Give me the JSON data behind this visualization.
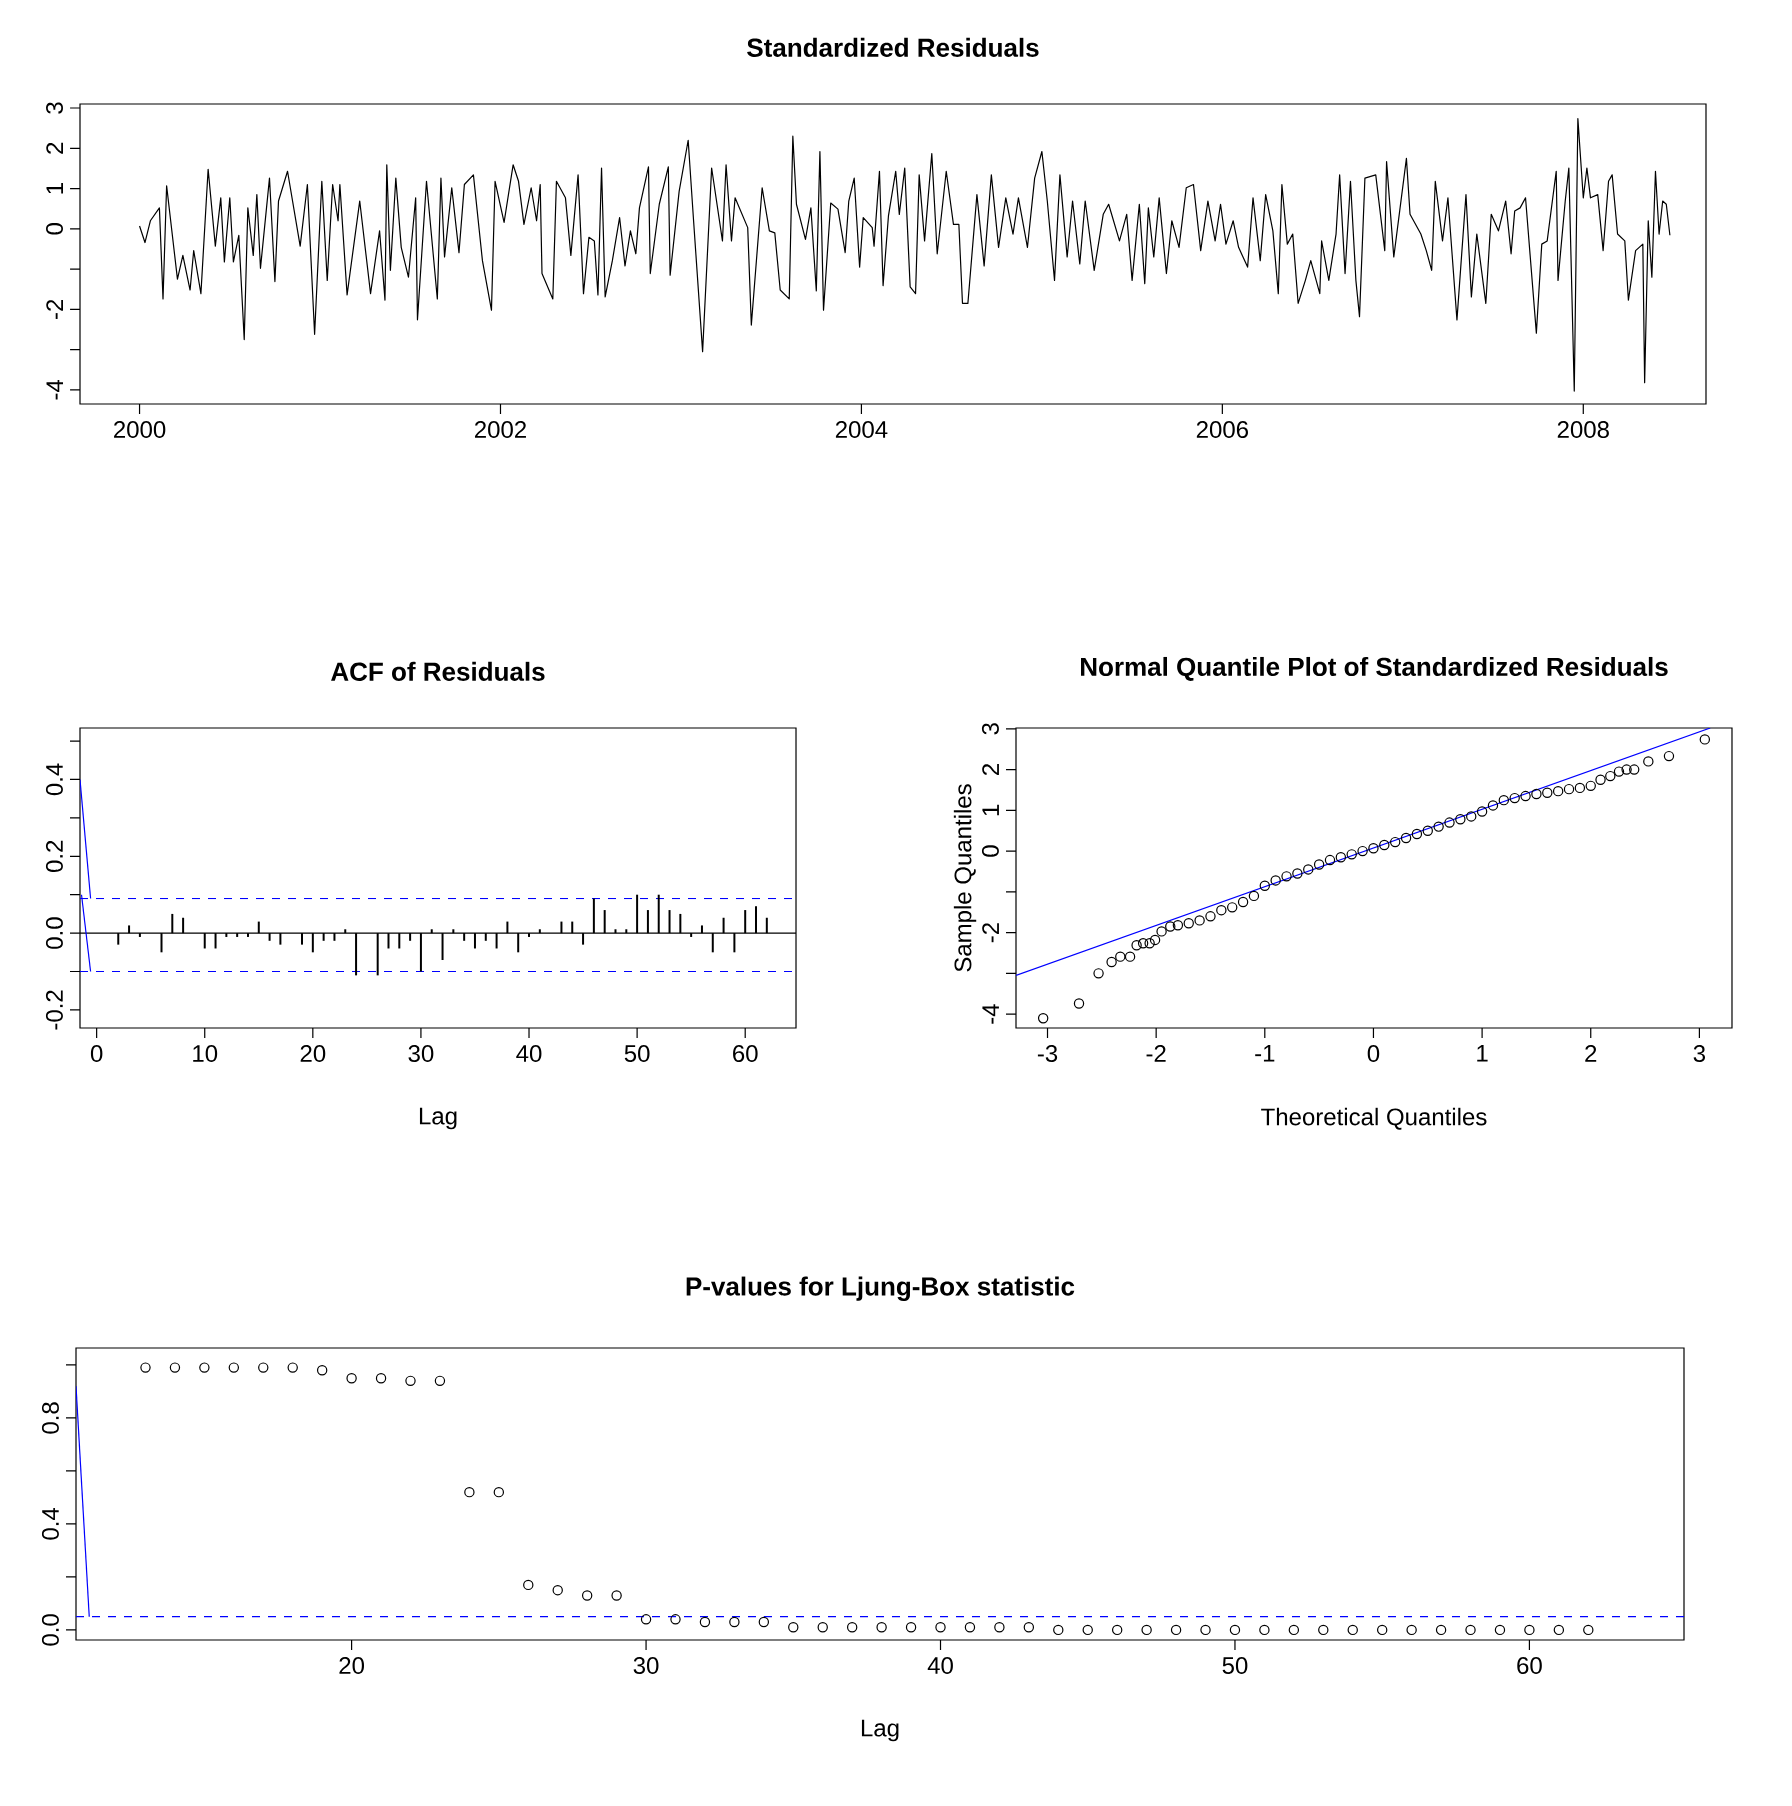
{
  "chart_data": [
    {
      "type": "line",
      "title": "Standardized Residuals",
      "xlim": [
        1999.67,
        2008.68
      ],
      "ylim": [
        -4.35,
        3.1
      ],
      "xticks": [
        2000,
        2002,
        2004,
        2006,
        2008
      ],
      "yticks": [
        -4,
        {
          "value": -3,
          "label": null
        },
        -2,
        {
          "value": -1,
          "label": null
        },
        0,
        1,
        2,
        3
      ],
      "x": [
        2000.0,
        2000.03,
        2000.06,
        2000.11,
        2000.13,
        2000.15,
        2000.21,
        2000.24,
        2000.28,
        2000.3,
        2000.34,
        2000.38,
        2000.42,
        2000.45,
        2000.47,
        2000.5,
        2000.52,
        2000.55,
        2000.58,
        2000.6,
        2000.63,
        2000.65,
        2000.67,
        2000.72,
        2000.75,
        2000.77,
        2000.82,
        2000.89,
        2000.93,
        2000.97,
        2001.01,
        2001.04,
        2001.07,
        2001.1,
        2001.11,
        2001.15,
        2001.22,
        2001.28,
        2001.33,
        2001.36,
        2001.37,
        2001.39,
        2001.42,
        2001.45,
        2001.49,
        2001.53,
        2001.54,
        2001.59,
        2001.65,
        2001.67,
        2001.69,
        2001.73,
        2001.77,
        2001.8,
        2001.85,
        2001.9,
        2001.95,
        2001.97,
        2002.02,
        2002.07,
        2002.1,
        2002.13,
        2002.17,
        2002.2,
        2002.22,
        2002.23,
        2002.29,
        2002.31,
        2002.36,
        2002.39,
        2002.43,
        2002.46,
        2002.49,
        2002.52,
        2002.54,
        2002.56,
        2002.58,
        2002.62,
        2002.66,
        2002.69,
        2002.72,
        2002.75,
        2002.77,
        2002.82,
        2002.83,
        2002.88,
        2002.93,
        2002.94,
        2002.99,
        2003.04,
        2003.07,
        2003.12,
        2003.17,
        2003.23,
        2003.25,
        2003.28,
        2003.3,
        2003.37,
        2003.39,
        2003.45,
        2003.49,
        2003.52,
        2003.55,
        2003.6,
        2003.62,
        2003.64,
        2003.69,
        2003.72,
        2003.75,
        2003.77,
        2003.79,
        2003.83,
        2003.87,
        2003.91,
        2003.93,
        2003.96,
        2003.99,
        2004.01,
        2004.06,
        2004.07,
        2004.1,
        2004.12,
        2004.15,
        2004.19,
        2004.21,
        2004.24,
        2004.27,
        2004.3,
        2004.32,
        2004.35,
        2004.39,
        2004.42,
        2004.47,
        2004.51,
        2004.54,
        2004.56,
        2004.59,
        2004.64,
        2004.68,
        2004.72,
        2004.76,
        2004.8,
        2004.84,
        2004.87,
        2004.92,
        2004.96,
        2005.0,
        2005.03,
        2005.07,
        2005.1,
        2005.14,
        2005.17,
        2005.21,
        2005.24,
        2005.29,
        2005.34,
        2005.37,
        2005.43,
        2005.47,
        2005.5,
        2005.54,
        2005.57,
        2005.59,
        2005.62,
        2005.65,
        2005.69,
        2005.72,
        2005.76,
        2005.8,
        2005.84,
        2005.88,
        2005.92,
        2005.96,
        2005.99,
        2006.02,
        2006.06,
        2006.09,
        2006.14,
        2006.17,
        2006.21,
        2006.24,
        2006.28,
        2006.31,
        2006.33,
        2006.36,
        2006.39,
        2006.42,
        2006.46,
        2006.49,
        2006.54,
        2006.55,
        2006.59,
        2006.63,
        2006.65,
        2006.68,
        2006.71,
        2006.74,
        2006.76,
        2006.79,
        2006.85,
        2006.9,
        2006.91,
        2006.95,
        2007.02,
        2007.04,
        2007.1,
        2007.13,
        2007.16,
        2007.18,
        2007.22,
        2007.25,
        2007.3,
        2007.35,
        2007.38,
        2007.41,
        2007.46,
        2007.49,
        2007.53,
        2007.57,
        2007.6,
        2007.62,
        2007.65,
        2007.68,
        2007.74,
        2007.77,
        2007.8,
        2007.85,
        2007.86,
        2007.9,
        2007.92,
        2007.95,
        2007.97,
        2008.0,
        2008.02,
        2008.04,
        2008.08,
        2008.11,
        2008.14,
        2008.16,
        2008.19,
        2008.23,
        2008.25,
        2008.29,
        2008.33,
        2008.34,
        2008.36,
        2008.38,
        2008.4,
        2008.42,
        2008.44,
        2008.46,
        2008.48
      ],
      "series": [
        {
          "color": "#000000",
          "values": [
            0.07,
            -0.34,
            0.2,
            0.52,
            -1.74,
            1.07,
            -1.25,
            -0.66,
            -1.52,
            -0.54,
            -1.61,
            1.48,
            -0.43,
            0.77,
            -0.82,
            0.77,
            -0.82,
            -0.16,
            -2.75,
            0.52,
            -0.66,
            0.85,
            -0.98,
            1.26,
            -1.31,
            0.69,
            1.43,
            -0.43,
            1.1,
            -2.62,
            1.18,
            -1.28,
            1.1,
            0.2,
            1.1,
            -1.64,
            0.69,
            -1.61,
            -0.05,
            -1.77,
            1.59,
            -1.03,
            1.26,
            -0.46,
            -1.2,
            0.77,
            -2.26,
            1.18,
            -1.74,
            1.26,
            -0.7,
            1.02,
            -0.59,
            1.1,
            1.34,
            -0.79,
            -2.02,
            1.18,
            0.16,
            1.59,
            1.18,
            0.11,
            1.02,
            0.2,
            1.1,
            -1.11,
            -1.74,
            1.18,
            0.77,
            -0.66,
            1.34,
            -1.61,
            -0.21,
            -0.3,
            -1.64,
            1.51,
            -1.69,
            -0.79,
            0.28,
            -0.92,
            -0.05,
            -0.62,
            0.52,
            1.54,
            -1.11,
            0.61,
            1.54,
            -1.15,
            0.93,
            2.2,
            0.2,
            -3.05,
            1.51,
            -0.3,
            1.59,
            -0.3,
            0.77,
            0.03,
            -2.39,
            1.02,
            -0.05,
            -0.1,
            -1.52,
            -1.74,
            2.3,
            0.61,
            -0.26,
            0.52,
            -1.54,
            1.92,
            -2.02,
            0.64,
            0.49,
            -0.59,
            0.69,
            1.26,
            -0.95,
            0.28,
            0.03,
            -0.43,
            1.43,
            -1.41,
            0.33,
            1.43,
            0.36,
            1.51,
            -1.44,
            -1.61,
            1.34,
            -0.3,
            1.87,
            -0.62,
            1.43,
            0.11,
            0.11,
            -1.85,
            -1.85,
            0.85,
            -0.92,
            1.34,
            -0.46,
            0.77,
            -0.13,
            0.77,
            -0.46,
            1.26,
            1.92,
            0.69,
            -1.28,
            1.34,
            -0.7,
            0.69,
            -0.87,
            0.69,
            -1.03,
            0.36,
            0.61,
            -0.3,
            0.36,
            -1.28,
            0.61,
            -1.36,
            0.52,
            -0.7,
            0.77,
            -1.11,
            0.2,
            -0.46,
            1.02,
            1.1,
            -0.54,
            0.69,
            -0.3,
            0.61,
            -0.38,
            0.2,
            -0.46,
            -0.95,
            0.77,
            -0.79,
            0.85,
            -0.05,
            -1.61,
            1.1,
            -0.38,
            -0.13,
            -1.85,
            -1.28,
            -0.79,
            -1.61,
            -0.3,
            -1.28,
            -0.13,
            1.34,
            -1.11,
            1.18,
            -1.28,
            -2.18,
            1.26,
            1.34,
            -0.54,
            1.67,
            -0.7,
            1.75,
            0.36,
            -0.13,
            -0.54,
            -1.03,
            1.18,
            -0.3,
            0.77,
            -2.26,
            0.85,
            -1.69,
            -0.13,
            -1.85,
            0.36,
            -0.05,
            0.69,
            -0.62,
            0.44,
            0.52,
            0.77,
            -2.59,
            -0.38,
            -0.3,
            1.43,
            -1.28,
            0.69,
            1.51,
            -4.03,
            2.74,
            0.77,
            1.51,
            0.77,
            0.85,
            -0.54,
            1.18,
            1.34,
            -0.13,
            -0.3,
            -1.77,
            -0.54,
            -0.38,
            -3.82,
            0.2,
            -1.2,
            1.43,
            -0.13,
            0.69,
            0.61,
            -0.16
          ]
        }
      ]
    },
    {
      "type": "bar",
      "title": "ACF of Residuals",
      "xlabel": "Lag",
      "xlim": [
        -1.54,
        64.7
      ],
      "ylim": [
        -0.247,
        0.534
      ],
      "xticks": [
        0,
        10,
        20,
        30,
        40,
        50,
        60
      ],
      "yticks": [
        -0.2,
        {
          "value": -0.1,
          "label": null
        },
        {
          "value": 0,
          "label": "0.0"
        },
        {
          "value": 0.1,
          "label": null
        },
        0.2,
        {
          "value": 0.3,
          "label": null
        },
        0.4,
        {
          "value": 0.5,
          "label": null
        }
      ],
      "x": [
        1,
        2,
        3,
        4,
        5,
        6,
        7,
        8,
        9,
        10,
        11,
        12,
        13,
        14,
        15,
        16,
        17,
        18,
        19,
        20,
        21,
        22,
        23,
        24,
        25,
        26,
        27,
        28,
        29,
        30,
        31,
        32,
        33,
        34,
        35,
        36,
        37,
        38,
        39,
        40,
        41,
        42,
        43,
        44,
        45,
        46,
        47,
        48,
        49,
        50,
        51,
        52,
        53,
        54,
        55,
        56,
        57,
        58,
        59,
        60,
        61,
        62
      ],
      "series": [
        {
          "color": "#000000",
          "values": [
            0,
            -0.03,
            0.02,
            -0.01,
            0,
            -0.05,
            0.05,
            0.04,
            0,
            -0.04,
            -0.04,
            -0.01,
            -0.01,
            -0.01,
            0.03,
            -0.02,
            -0.03,
            0,
            -0.03,
            -0.05,
            -0.02,
            -0.02,
            0.01,
            -0.11,
            0,
            -0.11,
            -0.04,
            -0.04,
            -0.02,
            -0.1,
            0.01,
            -0.07,
            0.01,
            -0.02,
            -0.04,
            -0.02,
            -0.04,
            0.03,
            -0.05,
            -0.01,
            0.01,
            0,
            0.03,
            0.03,
            -0.03,
            0.09,
            0.06,
            0.01,
            0.01,
            0.1,
            0.06,
            0.1,
            0.06,
            0.05,
            -0.01,
            0.02,
            -0.05,
            0.04,
            -0.05,
            0.06,
            0.07,
            0.04
          ]
        },
        {
          "type": "line",
          "color": "#0000ff",
          "x": [
            -1.54,
            -0.56
          ],
          "values": [
            0.4,
            0.09
          ]
        },
        {
          "type": "line",
          "color": "#0000ff",
          "x": [
            -1.4,
            -0.56
          ],
          "values": [
            0.1,
            -0.1
          ]
        }
      ],
      "ref_lines": [
        {
          "axis": "y",
          "value": 0.09,
          "color": "#0000ff",
          "line_style": "dashed"
        },
        {
          "axis": "y",
          "value": -0.1,
          "color": "#0000ff",
          "line_style": "dashed"
        },
        {
          "axis": "y",
          "value": 0,
          "color": "#000000",
          "line_style": "solid"
        }
      ]
    },
    {
      "type": "scatter",
      "title": "Normal Quantile Plot of Standardized Residuals",
      "xlabel": "Theoretical Quantiles",
      "ylabel": "Sample Quantiles",
      "xlim": [
        -3.29,
        3.3
      ],
      "ylim": [
        -4.34,
        3.02
      ],
      "xticks": [
        -3,
        -2,
        -1,
        0,
        1,
        2,
        3
      ],
      "yticks": [
        -4,
        {
          "value": -3,
          "label": null
        },
        -2,
        {
          "value": -1,
          "label": null
        },
        0,
        1,
        2,
        3
      ],
      "series": [
        {
          "color": "#000000",
          "marker": "circle",
          "x": [
            -3.04,
            -2.71,
            -2.53,
            -2.41,
            -2.33,
            -2.24,
            -2.18,
            -2.12,
            -2.06,
            -2.01,
            -1.95,
            -1.87,
            -1.8,
            -1.7,
            -1.6,
            -1.5,
            -1.4,
            -1.3,
            -1.2,
            -1.1,
            -1.0,
            -0.9,
            -0.8,
            -0.7,
            -0.6,
            -0.5,
            -0.4,
            -0.3,
            -0.2,
            -0.1,
            0,
            0.1,
            0.2,
            0.3,
            0.4,
            0.5,
            0.6,
            0.7,
            0.8,
            0.9,
            1.0,
            1.1,
            1.2,
            1.3,
            1.4,
            1.5,
            1.6,
            1.7,
            1.8,
            1.9,
            2.0,
            2.09,
            2.18,
            2.26,
            2.33,
            2.4,
            2.53,
            2.72,
            3.05
          ],
          "values": [
            -4.1,
            -3.74,
            -3.0,
            -2.72,
            -2.59,
            -2.59,
            -2.31,
            -2.26,
            -2.26,
            -2.18,
            -1.97,
            -1.85,
            -1.82,
            -1.77,
            -1.7,
            -1.6,
            -1.45,
            -1.38,
            -1.25,
            -1.1,
            -0.85,
            -0.72,
            -0.62,
            -0.55,
            -0.45,
            -0.33,
            -0.22,
            -0.15,
            -0.08,
            0.0,
            0.07,
            0.15,
            0.22,
            0.32,
            0.42,
            0.5,
            0.6,
            0.7,
            0.78,
            0.85,
            0.97,
            1.12,
            1.25,
            1.3,
            1.35,
            1.4,
            1.43,
            1.47,
            1.52,
            1.55,
            1.6,
            1.75,
            1.84,
            1.95,
            2.0,
            2.0,
            2.2,
            2.33,
            2.74
          ]
        },
        {
          "type": "line",
          "color": "#0000ff",
          "x": [
            -3.29,
            3.1
          ],
          "values": [
            -3.05,
            3.02
          ]
        }
      ]
    },
    {
      "type": "scatter",
      "title": "P-values for Ljung-Box statistic",
      "xlabel": "Lag",
      "xlim": [
        10.64,
        65.25
      ],
      "ylim": [
        -0.038,
        1.064
      ],
      "xticks": [
        20,
        30,
        40,
        50,
        60
      ],
      "yticks": [
        {
          "value": 0,
          "label": "0.0"
        },
        {
          "value": 0.2,
          "label": null
        },
        0.4,
        {
          "value": 0.6,
          "label": null
        },
        0.8,
        {
          "value": 1,
          "label": null
        }
      ],
      "x": [
        13,
        14,
        15,
        16,
        17,
        18,
        19,
        20,
        21,
        22,
        23,
        24,
        25,
        26,
        27,
        28,
        29,
        30,
        31,
        32,
        33,
        34,
        35,
        36,
        37,
        38,
        39,
        40,
        41,
        42,
        43,
        44,
        45,
        46,
        47,
        48,
        49,
        50,
        51,
        52,
        53,
        54,
        55,
        56,
        57,
        58,
        59,
        60,
        61,
        62
      ],
      "series": [
        {
          "color": "#000000",
          "marker": "circle",
          "values": [
            0.99,
            0.99,
            0.99,
            0.99,
            0.99,
            0.99,
            0.98,
            0.95,
            0.95,
            0.94,
            0.94,
            0.52,
            0.52,
            0.17,
            0.15,
            0.13,
            0.13,
            0.04,
            0.04,
            0.03,
            0.03,
            0.03,
            0.01,
            0.01,
            0.01,
            0.01,
            0.01,
            0.01,
            0.01,
            0.01,
            0.01,
            0,
            0,
            0,
            0,
            0,
            0,
            0,
            0,
            0,
            0,
            0,
            0,
            0,
            0,
            0,
            0,
            0,
            0,
            0
          ]
        },
        {
          "type": "line",
          "color": "#0000ff",
          "x": [
            10.64,
            11.09
          ],
          "values": [
            0.92,
            0.05
          ]
        }
      ],
      "ref_lines": [
        {
          "axis": "y",
          "value": 0.05,
          "color": "#0000ff",
          "line_style": "dashed"
        }
      ]
    }
  ]
}
